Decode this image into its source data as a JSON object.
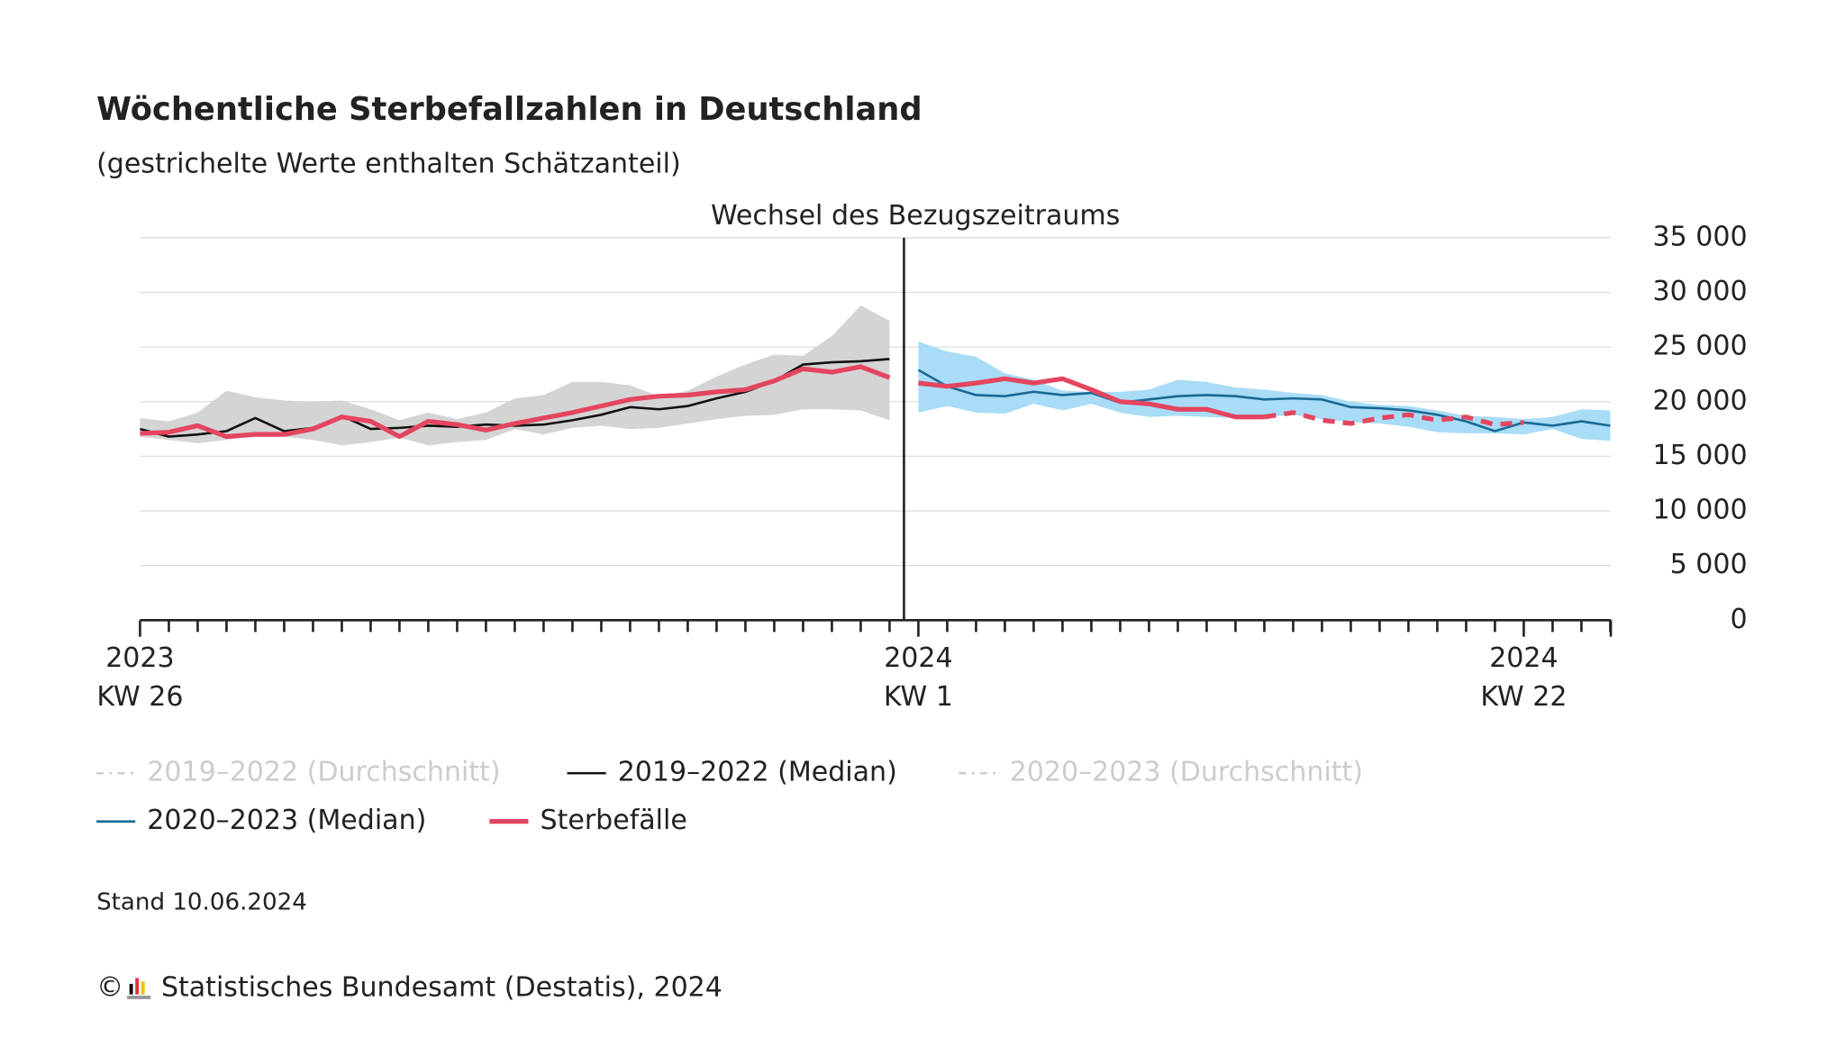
{
  "chart_data": {
    "type": "line",
    "title": "Wöchentliche Sterbefallzahlen in Deutschland",
    "subtitle": "(gestrichelte Werte enthalten Schätzanteil)",
    "annotation": "Wechsel des Bezugszeitraums",
    "divider_after": 26,
    "categories": [
      [
        "2023",
        "KW 26"
      ],
      null,
      null,
      null,
      null,
      null,
      null,
      null,
      null,
      null,
      null,
      null,
      null,
      null,
      null,
      null,
      null,
      null,
      null,
      null,
      null,
      null,
      null,
      null,
      null,
      null,
      null,
      [
        "2024",
        "KW 1"
      ],
      null,
      null,
      null,
      null,
      null,
      null,
      null,
      null,
      null,
      null,
      null,
      null,
      null,
      null,
      null,
      null,
      null,
      null,
      null,
      null,
      [
        "2024",
        "KW 22"
      ],
      null,
      null,
      null
    ],
    "ylim": [
      0,
      35000
    ],
    "yticks": [
      0,
      {
        "value": 5000,
        "label": "5 000"
      },
      {
        "value": 10000,
        "label": "10 000"
      },
      {
        "value": 15000,
        "label": "15 000"
      },
      {
        "value": 20000,
        "label": "20 000"
      },
      {
        "value": 25000,
        "label": "25 000"
      },
      {
        "value": 30000,
        "label": "30 000"
      },
      {
        "value": 35000,
        "label": "35 000"
      }
    ],
    "grid": true,
    "bands": [
      {
        "color": "#d4d4d4",
        "upper": [
          18500,
          18200,
          19000,
          21000,
          20400,
          20100,
          20000,
          20100,
          19300,
          18300,
          19000,
          18400,
          19000,
          20300,
          20600,
          21800,
          21800,
          21500,
          20500,
          21000,
          22300,
          23400,
          24300,
          24200,
          26000,
          28800,
          27400,
          null,
          null,
          null,
          null,
          null,
          null,
          null,
          null,
          null,
          null,
          null,
          null,
          null,
          null,
          null,
          null,
          null,
          null,
          null,
          null,
          null,
          null,
          null,
          null,
          null
        ],
        "lower": [
          16800,
          16500,
          16200,
          16500,
          16900,
          16800,
          16500,
          16000,
          16300,
          16700,
          16000,
          16300,
          16500,
          17500,
          17000,
          17600,
          17800,
          17500,
          17600,
          18000,
          18400,
          18700,
          18800,
          19300,
          19300,
          19200,
          18300,
          null,
          null,
          null,
          null,
          null,
          null,
          null,
          null,
          null,
          null,
          null,
          null,
          null,
          null,
          null,
          null,
          null,
          null,
          null,
          null,
          null,
          null,
          null,
          null,
          null
        ]
      },
      {
        "color": "#a9dcf7",
        "upper": [
          null,
          null,
          null,
          null,
          null,
          null,
          null,
          null,
          null,
          null,
          null,
          null,
          null,
          null,
          null,
          null,
          null,
          null,
          null,
          null,
          null,
          null,
          null,
          null,
          null,
          null,
          null,
          25500,
          24600,
          24100,
          22600,
          22000,
          21000,
          20900,
          20900,
          21100,
          22000,
          21800,
          21300,
          21100,
          20800,
          20600,
          20000,
          19700,
          19600,
          19200,
          18700,
          18600,
          18400,
          18600,
          19300,
          19200
        ],
        "lower": [
          null,
          null,
          null,
          null,
          null,
          null,
          null,
          null,
          null,
          null,
          null,
          null,
          null,
          null,
          null,
          null,
          null,
          null,
          null,
          null,
          null,
          null,
          null,
          null,
          null,
          null,
          null,
          19000,
          19600,
          19000,
          18900,
          19800,
          19200,
          19800,
          19000,
          18600,
          18700,
          18600,
          18500,
          18600,
          18800,
          18400,
          18100,
          18000,
          17700,
          17200,
          17100,
          17100,
          17000,
          17500,
          16600,
          16400
        ]
      }
    ],
    "series": [
      {
        "name": "2019–2022 (Durchschnitt)",
        "color": "#cccccc",
        "style": "dash-dot",
        "visible": false
      },
      {
        "name": "2019–2022 (Median)",
        "color": "#111111",
        "width": 2,
        "values": [
          17500,
          16800,
          17000,
          17300,
          18500,
          17300,
          17600,
          18700,
          17500,
          17600,
          17800,
          17700,
          17900,
          17800,
          17900,
          18300,
          18800,
          19500,
          19300,
          19600,
          20300,
          20900,
          21900,
          23400,
          23600,
          23700,
          23900,
          null,
          null,
          null,
          null,
          null,
          null,
          null,
          null,
          null,
          null,
          null,
          null,
          null,
          null,
          null,
          null,
          null,
          null,
          null,
          null,
          null,
          null,
          null,
          null,
          null
        ]
      },
      {
        "name": "2020–2023 (Durchschnitt)",
        "color": "#cccccc",
        "style": "dash-dot",
        "visible": false
      },
      {
        "name": "2020–2023 (Median)",
        "color": "#1a6a96",
        "width": 2,
        "values": [
          null,
          null,
          null,
          null,
          null,
          null,
          null,
          null,
          null,
          null,
          null,
          null,
          null,
          null,
          null,
          null,
          null,
          null,
          null,
          null,
          null,
          null,
          null,
          null,
          null,
          null,
          null,
          22900,
          21400,
          20600,
          20500,
          20900,
          20600,
          20800,
          19900,
          20200,
          20500,
          20600,
          20500,
          20200,
          20300,
          20200,
          19500,
          19400,
          19200,
          18800,
          18200,
          17300,
          18100,
          17800,
          18200,
          17800
        ]
      },
      {
        "name": "Sterbefälle",
        "color": "#e5455f",
        "width": 4,
        "dashed_from": 39,
        "values": [
          17100,
          17200,
          17800,
          16800,
          17000,
          17000,
          17500,
          18600,
          18200,
          16800,
          18200,
          17900,
          17400,
          18000,
          18500,
          19000,
          19600,
          20200,
          20500,
          20600,
          20900,
          21100,
          21900,
          23000,
          22700,
          23200,
          22200,
          21700,
          21400,
          21700,
          22100,
          21700,
          22100,
          21100,
          20000,
          19800,
          19300,
          19300,
          18600,
          18600,
          19000,
          18300,
          18000,
          18500,
          18800,
          18300,
          18600,
          17900,
          18100,
          null,
          null,
          null
        ]
      }
    ],
    "stand": "Stand 10.06.2024",
    "copyright": "©",
    "source": "Statistisches Bundesamt (Destatis), 2024"
  }
}
